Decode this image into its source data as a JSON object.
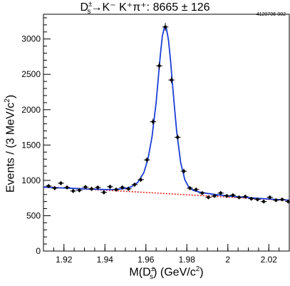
{
  "chart_data": {
    "type": "scatter",
    "title": {
      "d": "D",
      "charge_sup": "±",
      "s_sub": "s",
      "decay": "→K⁻ K⁺π⁺: 8665 ± 126"
    },
    "figure_id": "4120706-002",
    "xlabel": {
      "pre": "M(D",
      "sup": "±",
      "sub": "s",
      "post": ")  (GeV/c",
      "post_sup": "2",
      "post_end": ")"
    },
    "ylabel": {
      "pre": "Events / (3 MeV/c",
      "sup": "2",
      "post": ")"
    },
    "xlim": [
      1.91,
      2.03
    ],
    "ylim": [
      0,
      3350
    ],
    "xticks": [
      1.92,
      1.94,
      1.96,
      1.98,
      2.0,
      2.02
    ],
    "xtick_labels": [
      "1.92",
      "1.94",
      "1.96",
      "1.98",
      "2",
      "2.02"
    ],
    "yticks": [
      0,
      500,
      1000,
      1500,
      2000,
      2500,
      3000
    ],
    "ytick_labels": [
      "0",
      "500",
      "1000",
      "1500",
      "2000",
      "2500",
      "3000"
    ],
    "series": [
      {
        "type": "scatter",
        "x": [
          1.9125,
          1.9155,
          1.9185,
          1.9215,
          1.9245,
          1.9275,
          1.9305,
          1.9335,
          1.9365,
          1.9395,
          1.9425,
          1.9455,
          1.9485,
          1.9515,
          1.9545,
          1.9575,
          1.9605,
          1.9635,
          1.9665,
          1.9695,
          1.9725,
          1.9755,
          1.9785,
          1.9815,
          1.9845,
          1.9875,
          1.9905,
          1.9935,
          1.9965,
          1.9995,
          2.0025,
          2.0055,
          2.0085,
          2.0115,
          2.0145,
          2.0175,
          2.0205,
          2.0235,
          2.0265,
          2.0295
        ],
        "y": [
          920,
          890,
          960,
          900,
          850,
          860,
          905,
          880,
          900,
          830,
          910,
          870,
          900,
          880,
          940,
          1010,
          1290,
          1830,
          2620,
          3170,
          2420,
          1610,
          1130,
          890,
          870,
          820,
          760,
          780,
          820,
          780,
          790,
          760,
          770,
          740,
          730,
          700,
          760,
          720,
          730,
          700
        ],
        "yerr": [
          30,
          30,
          31,
          30,
          29,
          29,
          30,
          30,
          30,
          29,
          30,
          30,
          30,
          30,
          31,
          32,
          36,
          43,
          51,
          56,
          49,
          40,
          34,
          30,
          30,
          29,
          28,
          28,
          29,
          28,
          28,
          28,
          28,
          27,
          27,
          26,
          28,
          27,
          27,
          26
        ],
        "xerr": 0.0015,
        "color": "#000000"
      },
      {
        "type": "line",
        "x": [
          1.91,
          1.915,
          1.92,
          1.925,
          1.93,
          1.935,
          1.94,
          1.945,
          1.95,
          1.953,
          1.956,
          1.959,
          1.961,
          1.963,
          1.965,
          1.966,
          1.967,
          1.968,
          1.969,
          1.97,
          1.971,
          1.972,
          1.973,
          1.974,
          1.975,
          1.977,
          1.979,
          1.981,
          1.983,
          1.986,
          1.99,
          1.995,
          2.0,
          2.005,
          2.01,
          2.015,
          2.02,
          2.025,
          2.03
        ],
        "y": [
          905,
          898,
          892,
          886,
          880,
          875,
          870,
          872,
          885,
          910,
          970,
          1110,
          1300,
          1620,
          2100,
          2430,
          2760,
          3040,
          3160,
          3150,
          2990,
          2700,
          2360,
          2020,
          1700,
          1250,
          1010,
          900,
          860,
          835,
          815,
          795,
          780,
          767,
          757,
          745,
          737,
          728,
          720
        ],
        "color": "#1c3ed6",
        "style": "solid"
      },
      {
        "type": "line",
        "x": [
          1.91,
          2.03
        ],
        "y": [
          910,
          715
        ],
        "color": "#e8231c",
        "style": "dotted"
      }
    ]
  }
}
